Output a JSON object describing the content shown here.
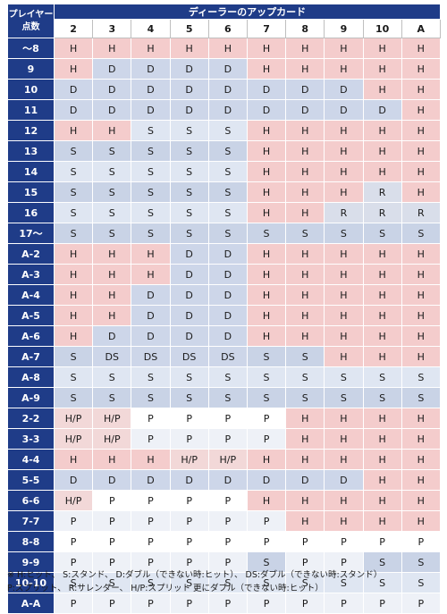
{
  "header": {
    "player_label_line1": "プレイヤー",
    "player_label_line2": "点数",
    "dealer_title": "ディーラーのアップカード",
    "upcards": [
      "2",
      "3",
      "4",
      "5",
      "6",
      "7",
      "8",
      "9",
      "10",
      "A"
    ]
  },
  "rows": [
    {
      "label": "～8",
      "actions": [
        "H",
        "H",
        "H",
        "H",
        "H",
        "H",
        "H",
        "H",
        "H",
        "H"
      ]
    },
    {
      "label": "9",
      "actions": [
        "H",
        "D",
        "D",
        "D",
        "D",
        "H",
        "H",
        "H",
        "H",
        "H"
      ]
    },
    {
      "label": "10",
      "actions": [
        "D",
        "D",
        "D",
        "D",
        "D",
        "D",
        "D",
        "D",
        "H",
        "H"
      ]
    },
    {
      "label": "11",
      "actions": [
        "D",
        "D",
        "D",
        "D",
        "D",
        "D",
        "D",
        "D",
        "D",
        "H"
      ]
    },
    {
      "label": "12",
      "actions": [
        "H",
        "H",
        "S",
        "S",
        "S",
        "H",
        "H",
        "H",
        "H",
        "H"
      ]
    },
    {
      "label": "13",
      "actions": [
        "S",
        "S",
        "S",
        "S",
        "S",
        "H",
        "H",
        "H",
        "H",
        "H"
      ]
    },
    {
      "label": "14",
      "actions": [
        "S",
        "S",
        "S",
        "S",
        "S",
        "H",
        "H",
        "H",
        "H",
        "H"
      ]
    },
    {
      "label": "15",
      "actions": [
        "S",
        "S",
        "S",
        "S",
        "S",
        "H",
        "H",
        "H",
        "R",
        "H"
      ]
    },
    {
      "label": "16",
      "actions": [
        "S",
        "S",
        "S",
        "S",
        "S",
        "H",
        "H",
        "R",
        "R",
        "R"
      ]
    },
    {
      "label": "17～",
      "actions": [
        "S",
        "S",
        "S",
        "S",
        "S",
        "S",
        "S",
        "S",
        "S",
        "S"
      ]
    },
    {
      "label": "A-2",
      "actions": [
        "H",
        "H",
        "H",
        "D",
        "D",
        "H",
        "H",
        "H",
        "H",
        "H"
      ]
    },
    {
      "label": "A-3",
      "actions": [
        "H",
        "H",
        "H",
        "D",
        "D",
        "H",
        "H",
        "H",
        "H",
        "H"
      ]
    },
    {
      "label": "A-4",
      "actions": [
        "H",
        "H",
        "D",
        "D",
        "D",
        "H",
        "H",
        "H",
        "H",
        "H"
      ]
    },
    {
      "label": "A-5",
      "actions": [
        "H",
        "H",
        "D",
        "D",
        "D",
        "H",
        "H",
        "H",
        "H",
        "H"
      ]
    },
    {
      "label": "A-6",
      "actions": [
        "H",
        "D",
        "D",
        "D",
        "D",
        "H",
        "H",
        "H",
        "H",
        "H"
      ]
    },
    {
      "label": "A-7",
      "actions": [
        "S",
        "DS",
        "DS",
        "DS",
        "DS",
        "S",
        "S",
        "H",
        "H",
        "H"
      ]
    },
    {
      "label": "A-8",
      "actions": [
        "S",
        "S",
        "S",
        "S",
        "S",
        "S",
        "S",
        "S",
        "S",
        "S"
      ]
    },
    {
      "label": "A-9",
      "actions": [
        "S",
        "S",
        "S",
        "S",
        "S",
        "S",
        "S",
        "S",
        "S",
        "S"
      ]
    },
    {
      "label": "2-2",
      "actions": [
        "H/P",
        "H/P",
        "P",
        "P",
        "P",
        "P",
        "H",
        "H",
        "H",
        "H"
      ]
    },
    {
      "label": "3-3",
      "actions": [
        "H/P",
        "H/P",
        "P",
        "P",
        "P",
        "P",
        "H",
        "H",
        "H",
        "H"
      ]
    },
    {
      "label": "4-4",
      "actions": [
        "H",
        "H",
        "H",
        "H/P",
        "H/P",
        "H",
        "H",
        "H",
        "H",
        "H"
      ]
    },
    {
      "label": "5-5",
      "actions": [
        "D",
        "D",
        "D",
        "D",
        "D",
        "D",
        "D",
        "D",
        "H",
        "H"
      ]
    },
    {
      "label": "6-6",
      "actions": [
        "H/P",
        "P",
        "P",
        "P",
        "P",
        "H",
        "H",
        "H",
        "H",
        "H"
      ]
    },
    {
      "label": "7-7",
      "actions": [
        "P",
        "P",
        "P",
        "P",
        "P",
        "P",
        "H",
        "H",
        "H",
        "H"
      ]
    },
    {
      "label": "8-8",
      "actions": [
        "P",
        "P",
        "P",
        "P",
        "P",
        "P",
        "P",
        "P",
        "P",
        "P"
      ]
    },
    {
      "label": "9-9",
      "actions": [
        "P",
        "P",
        "P",
        "P",
        "P",
        "S",
        "P",
        "P",
        "S",
        "S"
      ]
    },
    {
      "label": "10-10",
      "actions": [
        "S",
        "S",
        "S",
        "S",
        "S",
        "S",
        "S",
        "S",
        "S",
        "S"
      ]
    },
    {
      "label": "A-A",
      "actions": [
        "P",
        "P",
        "P",
        "P",
        "P",
        "P",
        "P",
        "P",
        "P",
        "P"
      ]
    }
  ],
  "notes": {
    "line1": "※ H:ヒット、 S:スタンド、 D:ダブル（できない時:ヒット）、 DS:ダブル（できない時:スタンド）",
    "line2": "P:スプリット、 R:サレンダー、 H/P:スプリット 更にダブル（できない時:ヒット）"
  },
  "colors": {
    "header_navy": "#1f3c88",
    "hit_pink": "#f4cccc",
    "stand_blue": "#dfe6f2",
    "double_blue": "#cdd6e9"
  }
}
